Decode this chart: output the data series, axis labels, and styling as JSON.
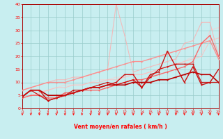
{
  "xlabel": "Vent moyen/en rafales ( km/h )",
  "xlim": [
    0,
    23
  ],
  "ylim": [
    0,
    40
  ],
  "xticks": [
    0,
    1,
    2,
    3,
    4,
    5,
    6,
    7,
    8,
    9,
    10,
    11,
    12,
    13,
    14,
    15,
    16,
    17,
    18,
    19,
    20,
    21,
    22,
    23
  ],
  "yticks": [
    0,
    5,
    10,
    15,
    20,
    25,
    30,
    35,
    40
  ],
  "bg_color": "#c8eef0",
  "grid_color": "#99cccc",
  "lines": [
    {
      "x": [
        0,
        1,
        2,
        3,
        4,
        5,
        6,
        7,
        8,
        9,
        10,
        11,
        12,
        13,
        14,
        15,
        16,
        17,
        18,
        19,
        20,
        21,
        22,
        23
      ],
      "y": [
        4.5,
        7,
        7,
        5,
        5,
        5,
        6,
        7,
        8,
        8,
        9,
        9,
        9,
        10,
        10,
        10,
        11,
        11,
        12,
        13,
        14,
        13,
        13,
        10
      ],
      "color": "#bb0000",
      "lw": 1.2,
      "marker": "o",
      "ms": 1.5,
      "alpha": 1.0,
      "zorder": 5
    },
    {
      "x": [
        0,
        1,
        2,
        3,
        4,
        5,
        6,
        7,
        8,
        9,
        10,
        11,
        12,
        13,
        14,
        15,
        16,
        17,
        18,
        19,
        20,
        21,
        22,
        23
      ],
      "y": [
        4.5,
        7,
        7,
        3,
        4,
        5,
        6,
        7,
        8,
        8,
        9,
        10,
        13,
        13,
        8,
        13,
        14,
        22,
        16,
        10,
        16,
        9,
        10,
        15
      ],
      "color": "#cc1111",
      "lw": 1.0,
      "marker": "o",
      "ms": 1.5,
      "alpha": 1.0,
      "zorder": 5
    },
    {
      "x": [
        0,
        1,
        2,
        3,
        4,
        5,
        6,
        7,
        8,
        9,
        10,
        11,
        12,
        13,
        14,
        15,
        16,
        17,
        18,
        19,
        20,
        21,
        22,
        23
      ],
      "y": [
        4.5,
        7,
        5,
        3,
        4,
        5,
        7,
        7,
        8,
        9,
        10,
        9,
        10,
        11,
        8,
        12,
        15,
        16,
        17,
        17,
        17,
        10,
        10,
        10
      ],
      "color": "#cc0000",
      "lw": 0.9,
      "marker": "o",
      "ms": 1.5,
      "alpha": 0.9,
      "zorder": 4
    },
    {
      "x": [
        0,
        1,
        2,
        3,
        4,
        5,
        6,
        7,
        8,
        9,
        10,
        11,
        12,
        13,
        14,
        15,
        16,
        17,
        18,
        19,
        20,
        21,
        22,
        23
      ],
      "y": [
        7,
        8,
        9,
        10,
        10,
        10,
        11,
        12,
        13,
        14,
        15,
        16,
        17,
        18,
        18,
        19,
        20,
        21,
        22,
        23,
        24,
        25,
        26,
        19
      ],
      "color": "#ff8888",
      "lw": 1.0,
      "marker": "o",
      "ms": 1.5,
      "alpha": 0.9,
      "zorder": 3
    },
    {
      "x": [
        0,
        1,
        2,
        3,
        4,
        5,
        6,
        7,
        8,
        9,
        10,
        11,
        12,
        13,
        14,
        15,
        16,
        17,
        18,
        19,
        20,
        21,
        22,
        23
      ],
      "y": [
        4,
        5,
        5,
        4,
        4,
        6,
        6,
        7,
        7,
        7,
        8,
        9,
        10,
        11,
        11,
        12,
        13,
        14,
        15,
        16,
        18,
        25,
        28,
        20
      ],
      "color": "#ff5555",
      "lw": 1.0,
      "marker": "o",
      "ms": 1.5,
      "alpha": 0.85,
      "zorder": 3
    },
    {
      "x": [
        0,
        1,
        2,
        3,
        4,
        5,
        6,
        7,
        8,
        9,
        10,
        11,
        12,
        13,
        14,
        15,
        16,
        17,
        18,
        19,
        20,
        21,
        22,
        23
      ],
      "y": [
        7,
        8,
        9,
        10,
        11,
        11,
        12,
        12,
        13,
        14,
        15,
        40,
        28,
        14,
        15,
        16,
        17,
        18,
        19,
        25,
        26,
        33,
        33,
        20
      ],
      "color": "#ffaaaa",
      "lw": 0.8,
      "marker": "o",
      "ms": 1.2,
      "alpha": 0.75,
      "zorder": 2
    },
    {
      "x": [
        0,
        1,
        2,
        3,
        4,
        5,
        6,
        7,
        8,
        9,
        10,
        11,
        12,
        13,
        14,
        15,
        16,
        17,
        18,
        19,
        20,
        21,
        22,
        23
      ],
      "y": [
        4,
        5,
        6,
        7,
        8,
        8,
        9,
        9,
        10,
        10,
        11,
        11,
        12,
        13,
        13,
        14,
        15,
        16,
        17,
        18,
        19,
        20,
        26,
        27
      ],
      "color": "#ffbbbb",
      "lw": 0.8,
      "marker": "o",
      "ms": 1.2,
      "alpha": 0.75,
      "zorder": 2
    },
    {
      "x": [
        0,
        1,
        2,
        3,
        4,
        5,
        6,
        7,
        8,
        9,
        10,
        11,
        12,
        13,
        14,
        15,
        16,
        17,
        18,
        19,
        20,
        21,
        22,
        23
      ],
      "y": [
        4,
        5,
        6,
        7,
        8,
        9,
        9,
        9,
        10,
        11,
        11,
        12,
        12,
        13,
        13,
        14,
        15,
        16,
        17,
        18,
        20,
        21,
        30,
        31
      ],
      "color": "#ffcccc",
      "lw": 0.8,
      "marker": "o",
      "ms": 1.0,
      "alpha": 0.65,
      "zorder": 1
    }
  ]
}
